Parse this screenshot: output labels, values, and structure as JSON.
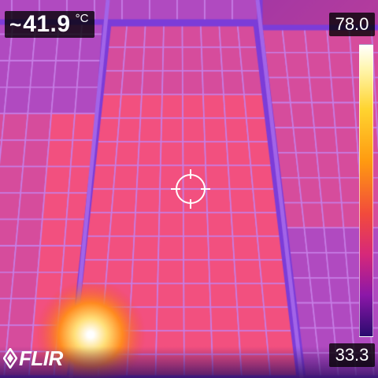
{
  "readout": {
    "prefix": "~",
    "value": "41.9",
    "unit": "°C"
  },
  "scale": {
    "max": "78.0",
    "min": "33.3"
  },
  "brand": {
    "logo_text": "FLIR"
  },
  "colors": {
    "cell_hot": "#f2507f",
    "cell_warm": "#d64c9c",
    "cell_cool": "#b04ac0",
    "grid_line": "#c77fe6",
    "frame_rail": "#7c3cd8",
    "hotspot": "#ffe07a"
  },
  "icons": {
    "crosshair": "crosshair-icon",
    "logo": "flir-logo-icon"
  }
}
